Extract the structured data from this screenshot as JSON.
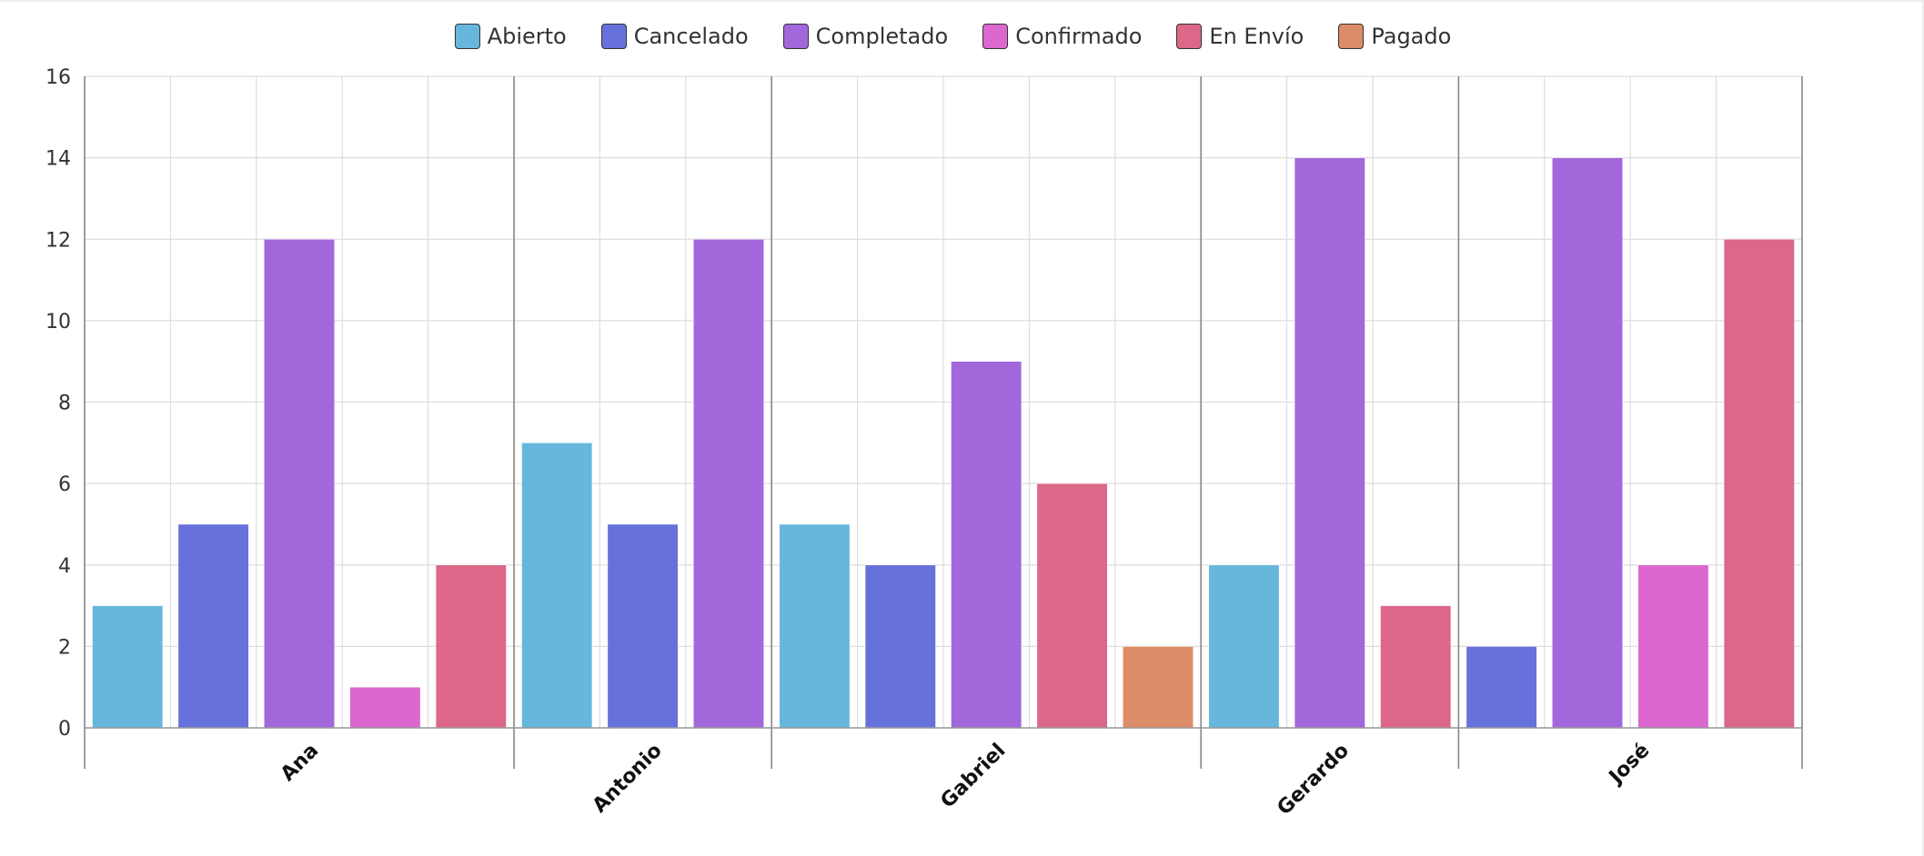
{
  "chart_data": {
    "type": "bar",
    "title": "",
    "xlabel": "",
    "ylabel": "",
    "ylim": [
      0,
      16
    ],
    "yticks": [
      0,
      2,
      4,
      6,
      8,
      10,
      12,
      14,
      16
    ],
    "grid": true,
    "legend_position": "top-center",
    "groups": [
      {
        "name": "Ana",
        "bars": [
          {
            "series": "Abierto",
            "value": 3
          },
          {
            "series": "Cancelado",
            "value": 5
          },
          {
            "series": "Completado",
            "value": 12
          },
          {
            "series": "Confirmado",
            "value": 1
          },
          {
            "series": "En Envío",
            "value": 4
          }
        ]
      },
      {
        "name": "Antonio",
        "bars": [
          {
            "series": "Abierto",
            "value": 7
          },
          {
            "series": "Cancelado",
            "value": 5
          },
          {
            "series": "Completado",
            "value": 12
          }
        ]
      },
      {
        "name": "Gabriel",
        "bars": [
          {
            "series": "Abierto",
            "value": 5
          },
          {
            "series": "Cancelado",
            "value": 4
          },
          {
            "series": "Completado",
            "value": 9
          },
          {
            "series": "En Envío",
            "value": 6
          },
          {
            "series": "Pagado",
            "value": 2
          }
        ]
      },
      {
        "name": "Gerardo",
        "bars": [
          {
            "series": "Abierto",
            "value": 4
          },
          {
            "series": "Completado",
            "value": 14
          },
          {
            "series": "En Envío",
            "value": 3
          }
        ]
      },
      {
        "name": "José",
        "bars": [
          {
            "series": "Cancelado",
            "value": 2
          },
          {
            "series": "Completado",
            "value": 14
          },
          {
            "series": "Confirmado",
            "value": 4
          },
          {
            "series": "En Envío",
            "value": 12
          }
        ]
      }
    ],
    "series": [
      {
        "name": "Abierto",
        "color": "#67b7dc"
      },
      {
        "name": "Cancelado",
        "color": "#6771dc"
      },
      {
        "name": "Completado",
        "color": "#a367dc"
      },
      {
        "name": "Confirmado",
        "color": "#dc67ce"
      },
      {
        "name": "En Envío",
        "color": "#dc6788"
      },
      {
        "name": "Pagado",
        "color": "#dc8c67"
      }
    ]
  }
}
